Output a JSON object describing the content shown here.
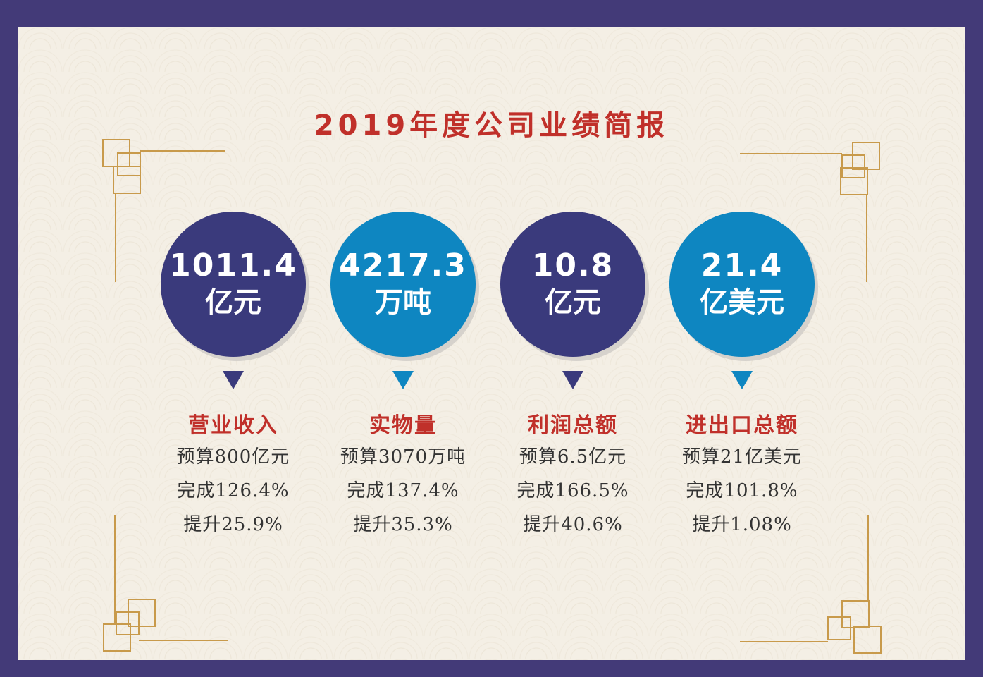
{
  "title": "2019年度公司业绩简报",
  "colors": {
    "frame": "#433a78",
    "background": "#f4efe5",
    "accent_red": "#c0302a",
    "navy": "#3a3a7c",
    "cyan": "#0e86c1",
    "gold": "#c89a4b"
  },
  "cards": [
    {
      "value": "1011.4",
      "unit": "亿元",
      "color": "#3a3a7c",
      "label": "营业收入",
      "budget": "预算800亿元",
      "completion": "完成126.4%",
      "increase": "提升25.9%"
    },
    {
      "value": "4217.3",
      "unit": "万吨",
      "color": "#0e86c1",
      "label": "实物量",
      "budget": "预算3070万吨",
      "completion": "完成137.4%",
      "increase": "提升35.3%"
    },
    {
      "value": "10.8",
      "unit": "亿元",
      "color": "#3a3a7c",
      "label": "利润总额",
      "budget": "预算6.5亿元",
      "completion": "完成166.5%",
      "increase": "提升40.6%"
    },
    {
      "value": "21.4",
      "unit": "亿美元",
      "color": "#0e86c1",
      "label": "进出口总额",
      "budget": "预算21亿美元",
      "completion": "完成101.8%",
      "increase": "提升1.08%"
    }
  ]
}
